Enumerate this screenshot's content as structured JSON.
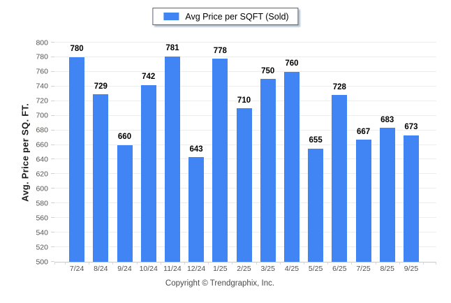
{
  "legend": {
    "label": "Avg Price per SQFT (Sold)"
  },
  "y_axis": {
    "title": "Avg. Price per SQ. FT."
  },
  "footer": {
    "copyright": "Copyright © Trendgraphix, Inc."
  },
  "colors": {
    "bar": "#4184F3",
    "gridline": "#ededed",
    "axis_line": "#c9c9c9",
    "tick_label": "#565350",
    "value_label": "#000000"
  },
  "chart_data": {
    "type": "bar",
    "title": "Avg Price per SQFT (Sold)",
    "categories": [
      "7/24",
      "8/24",
      "9/24",
      "10/24",
      "11/24",
      "12/24",
      "1/25",
      "2/25",
      "3/25",
      "4/25",
      "5/25",
      "6/25",
      "7/25",
      "8/25",
      "9/25"
    ],
    "values": [
      780,
      729,
      660,
      742,
      781,
      643,
      778,
      710,
      750,
      760,
      655,
      728,
      667,
      683,
      673
    ],
    "xlabel": "",
    "ylabel": "Avg. Price per SQ. FT.",
    "ylim": [
      500,
      800
    ],
    "ytick_step": 20,
    "grid": true,
    "legend_position": "top-center",
    "value_labels": true
  }
}
